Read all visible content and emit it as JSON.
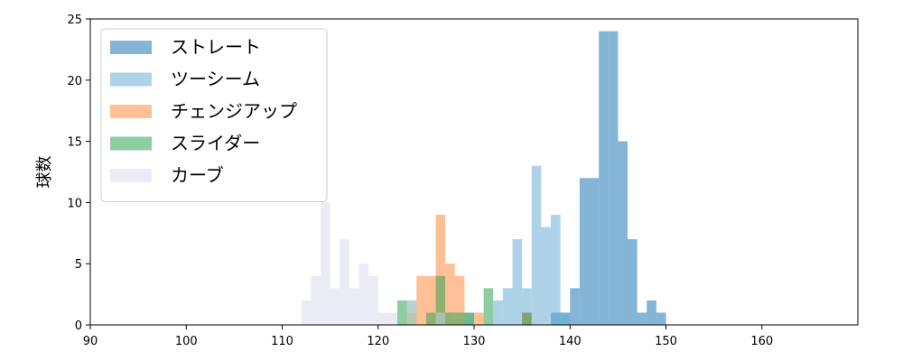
{
  "chart_data": {
    "type": "histogram",
    "xlabel": "",
    "ylabel": "球数",
    "xlim": [
      90,
      170
    ],
    "ylim": [
      0,
      25
    ],
    "xticks": [
      "90",
      "100",
      "110",
      "120",
      "130",
      "140",
      "150",
      "160"
    ],
    "yticks": [
      "0",
      "5",
      "10",
      "15",
      "20",
      "25"
    ],
    "bin_width": 1,
    "grid": false,
    "legend_position": "top-left",
    "series": [
      {
        "name": "ストレート",
        "color": "#1f77b4",
        "bins": [
          [
            126,
            1
          ],
          [
            138,
            1
          ],
          [
            139,
            1
          ],
          [
            140,
            3
          ],
          [
            141,
            12
          ],
          [
            142,
            12
          ],
          [
            143,
            24
          ],
          [
            144,
            24
          ],
          [
            145,
            15
          ],
          [
            146,
            7
          ],
          [
            147,
            1
          ],
          [
            148,
            2
          ],
          [
            149,
            1
          ]
        ]
      },
      {
        "name": "ツーシーム",
        "color": "#6baed6",
        "bins": [
          [
            129,
            1
          ],
          [
            132,
            2
          ],
          [
            133,
            3
          ],
          [
            134,
            7
          ],
          [
            135,
            3
          ],
          [
            136,
            13
          ],
          [
            137,
            8
          ],
          [
            138,
            9
          ],
          [
            139,
            1
          ]
        ]
      },
      {
        "name": "チェンジアップ",
        "color": "#fd8d3c",
        "bins": [
          [
            123,
            1
          ],
          [
            124,
            4
          ],
          [
            125,
            4
          ],
          [
            126,
            9
          ],
          [
            127,
            5
          ],
          [
            128,
            4
          ],
          [
            130,
            1
          ],
          [
            135,
            1
          ]
        ]
      },
      {
        "name": "スライダー",
        "color": "#31a354",
        "bins": [
          [
            122,
            2
          ],
          [
            123,
            2
          ],
          [
            125,
            1
          ],
          [
            126,
            4
          ],
          [
            127,
            1
          ],
          [
            128,
            1
          ],
          [
            129,
            1
          ],
          [
            131,
            3
          ],
          [
            135,
            1
          ]
        ]
      },
      {
        "name": "カーブ",
        "color": "#dadaeb",
        "bins": [
          [
            112,
            2
          ],
          [
            113,
            4
          ],
          [
            114,
            10
          ],
          [
            115,
            3
          ],
          [
            116,
            7
          ],
          [
            117,
            3
          ],
          [
            118,
            5
          ],
          [
            119,
            4
          ],
          [
            120,
            1
          ],
          [
            121,
            1
          ],
          [
            123,
            2
          ],
          [
            126,
            1
          ]
        ]
      }
    ]
  }
}
